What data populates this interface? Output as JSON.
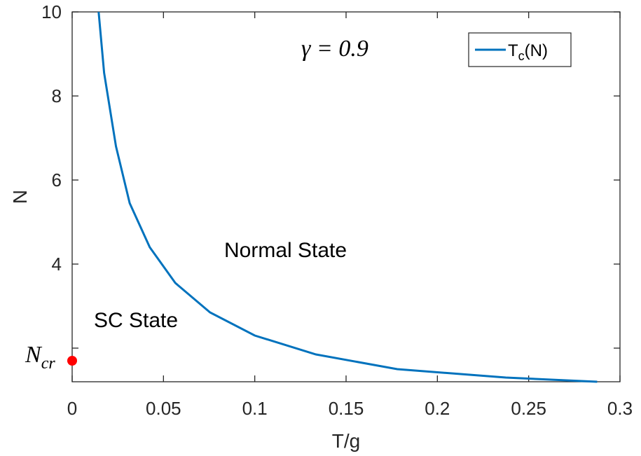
{
  "chart_data": {
    "type": "line",
    "xlabel": "T/g",
    "ylabel": "N",
    "xlim": [
      0,
      0.3
    ],
    "ylim": [
      1.2,
      10
    ],
    "xticks": [
      0,
      0.05,
      0.1,
      0.15,
      0.2,
      0.25,
      0.3
    ],
    "xtick_labels": [
      "0",
      "0.05",
      "0.1",
      "0.15",
      "0.2",
      "0.25",
      "0.3"
    ],
    "yticks": [
      4,
      6,
      8,
      10
    ],
    "ytick_labels": [
      "4",
      "6",
      "8",
      "10"
    ],
    "grid": false,
    "legend_position": "top-right",
    "series": [
      {
        "name": "T_c(N)",
        "color": "#0072BD",
        "x": [
          0.0145,
          0.0175,
          0.024,
          0.0315,
          0.0425,
          0.0565,
          0.0755,
          0.1,
          0.1335,
          0.178,
          0.2375,
          0.2875
        ],
        "y": [
          10,
          8.55,
          6.8,
          5.45,
          4.4,
          3.55,
          2.85,
          2.3,
          1.85,
          1.5,
          1.3,
          1.2
        ]
      }
    ],
    "points": [
      {
        "label": "N_cr",
        "x": 0,
        "y": 1.7,
        "color": "#FF0000"
      }
    ],
    "annotations": {
      "gamma": "γ = 0.9",
      "normal_state": "Normal State",
      "sc_state": "SC State",
      "ncr_main": "N",
      "ncr_sub": "cr"
    },
    "legend": {
      "main": "T",
      "sub": "c",
      "suffix": "(N)"
    }
  }
}
